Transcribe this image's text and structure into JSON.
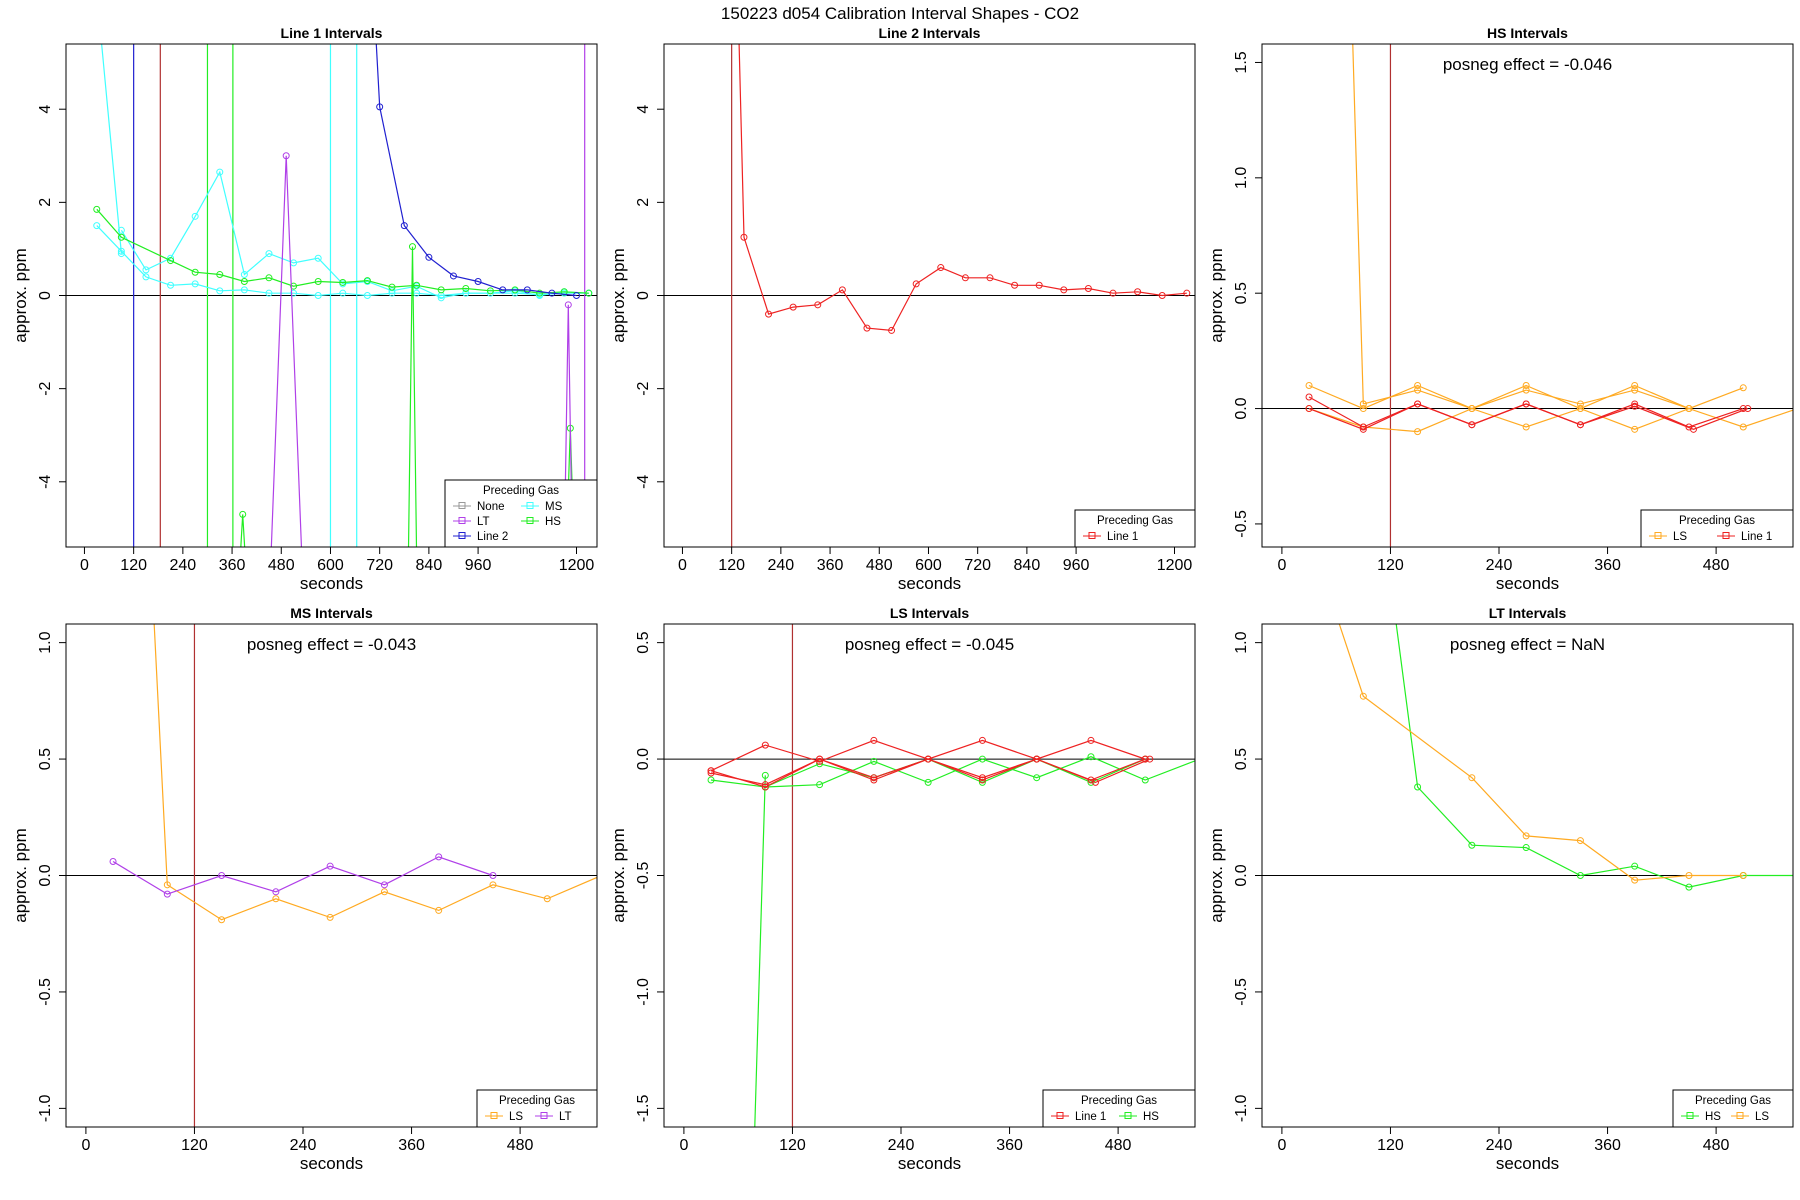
{
  "figure": {
    "title": "150223  d054   Calibration Interval Shapes - CO2"
  },
  "colors": {
    "None": "#999999",
    "LT": "#b040e8",
    "Line 2": "#2020d0",
    "MS": "#40ffff",
    "HS": "#22ee22",
    "LS": "#ffaa22",
    "Line 1": "#ee2222",
    "marker_line": "#b03030",
    "zero_line": "#000000"
  },
  "chart_data": [
    {
      "type": "line",
      "title": "Line 1 Intervals",
      "xlabel": "seconds",
      "ylabel": "approx. ppm",
      "xlim": [
        -45,
        1250
      ],
      "ylim": [
        -5.4,
        5.4
      ],
      "xticks": [
        "0",
        "120",
        "240",
        "360",
        "480",
        "600",
        "720",
        "840",
        "960",
        "1200"
      ],
      "yticks": [
        "-4",
        "-2",
        "0",
        "2",
        "4"
      ],
      "annotation": "",
      "legend": {
        "title": "Preceding Gas",
        "columns": 2,
        "placement": "bottom-right",
        "entries": [
          "None",
          "MS",
          "LT",
          "HS",
          "Line 2"
        ]
      },
      "vlines": [
        {
          "x": 120,
          "series": "Line 2"
        },
        {
          "x": 185,
          "series": "marker_line"
        },
        {
          "x": 300,
          "series": "HS"
        },
        {
          "x": 362,
          "series": "HS"
        },
        {
          "x": 600,
          "series": "MS"
        },
        {
          "x": 664,
          "series": "MS"
        },
        {
          "x": 1220,
          "series": "LT"
        }
      ],
      "series": [
        {
          "name": "MS",
          "x": [
            30,
            90
          ],
          "y": [
            6.5,
            0.9
          ]
        },
        {
          "name": "MS",
          "x": [
            30,
            90,
            150,
            210,
            270,
            330,
            390,
            450,
            510,
            570,
            630,
            690,
            750,
            810,
            870,
            930,
            990,
            1050,
            1110,
            1170,
            1230
          ],
          "y": [
            1.5,
            0.95,
            0.4,
            0.22,
            0.25,
            0.1,
            0.12,
            0.05,
            0.05,
            0.0,
            0.05,
            0.0,
            0.05,
            0.05,
            0.0,
            0.05,
            0.05,
            0.05,
            0.02,
            0.05,
            0.05
          ]
        },
        {
          "name": "MS",
          "x": [
            90,
            150,
            210,
            270,
            330,
            390,
            450,
            510,
            570,
            630,
            690,
            750,
            810,
            870,
            930,
            990,
            1050,
            1110,
            1170,
            1230
          ],
          "y": [
            1.4,
            0.55,
            0.8,
            1.7,
            2.65,
            0.45,
            0.9,
            0.7,
            0.8,
            0.25,
            0.3,
            0.1,
            0.2,
            -0.05,
            0.05,
            0.05,
            0.1,
            0.0,
            0.08,
            0.05
          ]
        },
        {
          "name": "HS",
          "x": [
            30,
            90,
            210,
            270,
            330,
            390,
            450,
            510,
            570,
            630,
            690,
            750,
            810,
            870,
            930,
            990,
            1050,
            1110,
            1170,
            1230
          ],
          "y": [
            1.85,
            1.25,
            0.75,
            0.5,
            0.45,
            0.3,
            0.38,
            0.2,
            0.3,
            0.28,
            0.32,
            0.18,
            0.22,
            0.12,
            0.15,
            0.1,
            0.12,
            0.05,
            0.08,
            0.05
          ]
        },
        {
          "name": "HS",
          "x": [
            380,
            386,
            392
          ],
          "y": [
            -5.6,
            -4.7,
            -5.6
          ]
        },
        {
          "name": "HS",
          "x": [
            790,
            800,
            810
          ],
          "y": [
            -5.6,
            1.05,
            -5.6
          ]
        },
        {
          "name": "HS",
          "x": [
            1175,
            1185,
            1195
          ],
          "y": [
            -5.6,
            -2.85,
            -5.6
          ]
        },
        {
          "name": "LT",
          "x": [
            455,
            492,
            530
          ],
          "y": [
            -5.6,
            3.0,
            -5.6
          ]
        },
        {
          "name": "LT",
          "x": [
            1170,
            1180,
            1190
          ],
          "y": [
            -5.6,
            -0.2,
            -5.6
          ]
        },
        {
          "name": "Line 2",
          "x": [
            705,
            720,
            780,
            840,
            900,
            960,
            1020,
            1080,
            1140,
            1200
          ],
          "y": [
            6.5,
            4.05,
            1.5,
            0.82,
            0.42,
            0.3,
            0.12,
            0.12,
            0.05,
            0.0
          ]
        }
      ]
    },
    {
      "type": "line",
      "title": "Line 2 Intervals",
      "xlabel": "seconds",
      "ylabel": "approx. ppm",
      "xlim": [
        -45,
        1250
      ],
      "ylim": [
        -5.4,
        5.4
      ],
      "xticks": [
        "0",
        "120",
        "240",
        "360",
        "480",
        "600",
        "720",
        "840",
        "960",
        "1200"
      ],
      "yticks": [
        "-4",
        "-2",
        "0",
        "2",
        "4"
      ],
      "annotation": "",
      "legend": {
        "title": "Preceding Gas",
        "columns": 1,
        "placement": "bottom-right",
        "entries": [
          "Line 1"
        ]
      },
      "vlines": [
        {
          "x": 120,
          "series": "marker_line"
        }
      ],
      "series": [
        {
          "name": "Line 1",
          "x": [
            135,
            150,
            210,
            270,
            330,
            390,
            450,
            510,
            570,
            630,
            690,
            750,
            810,
            870,
            930,
            990,
            1050,
            1110,
            1170,
            1230
          ],
          "y": [
            6.5,
            1.25,
            -0.4,
            -0.25,
            -0.2,
            0.12,
            -0.7,
            -0.75,
            0.25,
            0.6,
            0.38,
            0.38,
            0.22,
            0.22,
            0.12,
            0.15,
            0.05,
            0.08,
            0.0,
            0.05
          ]
        }
      ]
    },
    {
      "type": "line",
      "title": "HS Intervals",
      "xlabel": "seconds",
      "ylabel": "approx. ppm",
      "xlim": [
        -22,
        565
      ],
      "ylim": [
        -0.6,
        1.58
      ],
      "xticks": [
        "0",
        "120",
        "240",
        "360",
        "480"
      ],
      "yticks": [
        "-0.5",
        "0.0",
        "0.5",
        "1.0",
        "1.5"
      ],
      "annotation": "posneg effect = -0.046",
      "legend": {
        "title": "Preceding Gas",
        "columns": 2,
        "placement": "bottom-right",
        "entries": [
          "LS",
          "Line 1"
        ]
      },
      "vlines": [
        {
          "x": 120,
          "series": "marker_line"
        }
      ],
      "series": [
        {
          "name": "LS",
          "x": [
            78,
            90
          ],
          "y": [
            1.62,
            0.02
          ]
        },
        {
          "name": "LS",
          "x": [
            30,
            90,
            150,
            210,
            270,
            330,
            390,
            450,
            510
          ],
          "y": [
            0.1,
            0.0,
            0.1,
            0.0,
            0.1,
            0.0,
            0.1,
            0.0,
            0.09
          ]
        },
        {
          "name": "LS",
          "x": [
            90,
            150,
            210,
            270,
            330,
            390,
            450
          ],
          "y": [
            0.02,
            0.08,
            0.0,
            0.08,
            0.02,
            0.08,
            0.0
          ]
        },
        {
          "name": "LS",
          "x": [
            30,
            90,
            150,
            210,
            270,
            330,
            390,
            450,
            510,
            570
          ],
          "y": [
            0.0,
            -0.08,
            -0.1,
            0.0,
            -0.08,
            0.0,
            -0.09,
            0.0,
            -0.08,
            0.0
          ]
        },
        {
          "name": "Line 1",
          "x": [
            30,
            90,
            150,
            210,
            270,
            330,
            390,
            450,
            510
          ],
          "y": [
            0.05,
            -0.08,
            0.02,
            -0.07,
            0.02,
            -0.07,
            0.02,
            -0.08,
            0.0
          ]
        },
        {
          "name": "Line 1",
          "x": [
            30,
            90,
            150,
            210,
            270,
            330,
            390,
            455,
            515
          ],
          "y": [
            0.0,
            -0.09,
            0.02,
            -0.07,
            0.02,
            -0.07,
            0.01,
            -0.09,
            0.0
          ]
        }
      ]
    },
    {
      "type": "line",
      "title": "MS Intervals",
      "xlabel": "seconds",
      "ylabel": "approx. ppm",
      "xlim": [
        -22,
        565
      ],
      "ylim": [
        -1.08,
        1.08
      ],
      "xticks": [
        "0",
        "120",
        "240",
        "360",
        "480"
      ],
      "yticks": [
        "-1.0",
        "-0.5",
        "0.0",
        "0.5",
        "1.0"
      ],
      "annotation": "posneg effect = -0.043",
      "legend": {
        "title": "Preceding Gas",
        "columns": 2,
        "placement": "bottom-right",
        "entries": [
          "LS",
          "LT"
        ]
      },
      "vlines": [
        {
          "x": 120,
          "series": "marker_line"
        }
      ],
      "series": [
        {
          "name": "LS",
          "x": [
            75,
            90,
            150,
            210,
            270,
            330,
            390,
            450,
            510,
            570
          ],
          "y": [
            1.12,
            -0.04,
            -0.19,
            -0.1,
            -0.18,
            -0.07,
            -0.15,
            -0.04,
            -0.1,
            0.0
          ]
        },
        {
          "name": "LT",
          "x": [
            30,
            90,
            150,
            210,
            270,
            330,
            390,
            450
          ],
          "y": [
            0.06,
            -0.08,
            0.0,
            -0.07,
            0.04,
            -0.04,
            0.08,
            0.0
          ]
        }
      ]
    },
    {
      "type": "line",
      "title": "LS Intervals",
      "xlabel": "seconds",
      "ylabel": "approx. ppm",
      "xlim": [
        -22,
        565
      ],
      "ylim": [
        -1.58,
        0.58
      ],
      "xticks": [
        "0",
        "120",
        "240",
        "360",
        "480"
      ],
      "yticks": [
        "-1.5",
        "-1.0",
        "-0.5",
        "0.0",
        "0.5"
      ],
      "annotation": "posneg effect = -0.045",
      "legend": {
        "title": "Preceding Gas",
        "columns": 2,
        "placement": "bottom-right",
        "entries": [
          "Line 1",
          "HS"
        ]
      },
      "vlines": [
        {
          "x": 120,
          "series": "marker_line"
        }
      ],
      "series": [
        {
          "name": "HS",
          "x": [
            78,
            90
          ],
          "y": [
            -1.62,
            -0.07
          ]
        },
        {
          "name": "HS",
          "x": [
            30,
            90,
            150,
            210,
            270,
            330,
            390,
            450,
            510,
            570
          ],
          "y": [
            -0.09,
            -0.12,
            -0.11,
            -0.01,
            -0.1,
            0.0,
            -0.08,
            0.01,
            -0.09,
            0.0
          ]
        },
        {
          "name": "HS",
          "x": [
            90,
            150,
            210,
            270,
            330,
            390,
            450,
            510
          ],
          "y": [
            -0.12,
            -0.02,
            -0.08,
            0.0,
            -0.1,
            0.0,
            -0.1,
            0.0
          ]
        },
        {
          "name": "Line 1",
          "x": [
            30,
            90,
            150,
            210,
            270,
            330,
            390,
            450,
            510
          ],
          "y": [
            -0.05,
            0.06,
            -0.01,
            0.08,
            0.0,
            0.08,
            0.0,
            0.08,
            0.0
          ]
        },
        {
          "name": "Line 1",
          "x": [
            30,
            90,
            150,
            210,
            270,
            330,
            390,
            450,
            510
          ],
          "y": [
            -0.06,
            -0.11,
            0.0,
            -0.09,
            0.0,
            -0.09,
            0.0,
            -0.09,
            0.0
          ]
        },
        {
          "name": "Line 1",
          "x": [
            30,
            90,
            150,
            210,
            270,
            330,
            390,
            455,
            515
          ],
          "y": [
            -0.05,
            -0.12,
            0.0,
            -0.08,
            0.0,
            -0.08,
            0.0,
            -0.1,
            0.0
          ]
        }
      ]
    },
    {
      "type": "line",
      "title": "LT Intervals",
      "xlabel": "seconds",
      "ylabel": "approx. ppm",
      "xlim": [
        -22,
        565
      ],
      "ylim": [
        -1.08,
        1.08
      ],
      "xticks": [
        "0",
        "120",
        "240",
        "360",
        "480"
      ],
      "yticks": [
        "-1.0",
        "-0.5",
        "0.0",
        "0.5",
        "1.0"
      ],
      "annotation": "posneg effect = NaN",
      "legend": {
        "title": "Preceding Gas",
        "columns": 2,
        "placement": "bottom-right",
        "entries": [
          "HS",
          "LS"
        ]
      },
      "vlines": [],
      "series": [
        {
          "name": "HS",
          "x": [
            125,
            150,
            210,
            270,
            330,
            390,
            450,
            510,
            570
          ],
          "y": [
            1.12,
            0.38,
            0.13,
            0.12,
            0.0,
            0.04,
            -0.05,
            0.0,
            0.0
          ]
        },
        {
          "name": "LS",
          "x": [
            60,
            90,
            210,
            270,
            330,
            390,
            450,
            510
          ],
          "y": [
            1.12,
            0.77,
            0.42,
            0.17,
            0.15,
            -0.02,
            0.0,
            0.0
          ]
        }
      ]
    }
  ]
}
